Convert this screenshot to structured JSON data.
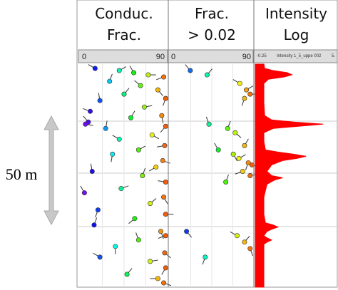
{
  "chart_data": {
    "type": "well-log",
    "scale_label": "50 m",
    "scale_length": 50,
    "depth_range": [
      0,
      104
    ],
    "tracks": [
      {
        "title": [
          "Conduc.",
          "Frac."
        ],
        "axis_labels": [
          "0",
          "90"
        ],
        "xlim": [
          0,
          90
        ],
        "tadpoles": {
          "depth": [
            2,
            3,
            4,
            5,
            6,
            8,
            10,
            12,
            14,
            16,
            17,
            20,
            22,
            24,
            25,
            27,
            28,
            29,
            30,
            33,
            35,
            38,
            40,
            42,
            45,
            48,
            50,
            52,
            55,
            58,
            60,
            62,
            65,
            68,
            70,
            72,
            75,
            78,
            80,
            82,
            85,
            88,
            90,
            92,
            95,
            98,
            100,
            102
          ],
          "dip": [
            15,
            40,
            55,
            70,
            86,
            30,
            62,
            80,
            45,
            88,
            20,
            66,
            10,
            84,
            52,
            8,
            5,
            88,
            26,
            74,
            40,
            87,
            60,
            33,
            85,
            78,
            12,
            64,
            88,
            42,
            4,
            86,
            72,
            18,
            88,
            56,
            14,
            83,
            88,
            60,
            36,
            87,
            20,
            72,
            88,
            48,
            80,
            86
          ],
          "azimuth": [
            300,
            60,
            330,
            90,
            250,
            20,
            310,
            140,
            40,
            200,
            350,
            80,
            290,
            170,
            30,
            320,
            100,
            220,
            10,
            120,
            300,
            260,
            60,
            190,
            110,
            240,
            350,
            20,
            280,
            70,
            330,
            150,
            50,
            200,
            90,
            230,
            20,
            160,
            250,
            340,
            180,
            130,
            300,
            80,
            210,
            40,
            270,
            110
          ]
        }
      },
      {
        "title": [
          "Frac.",
          "> 0.02"
        ],
        "axis_labels": [
          "0",
          "90"
        ],
        "xlim": [
          0,
          90
        ],
        "tadpoles": {
          "depth": [
            3,
            5,
            9,
            12,
            14,
            16,
            28,
            30,
            32,
            38,
            40,
            42,
            44,
            46,
            47,
            50,
            52,
            55,
            78,
            80,
            83,
            86,
            90
          ],
          "dip": [
            22,
            40,
            75,
            82,
            86,
            80,
            42,
            62,
            70,
            80,
            52,
            68,
            74,
            84,
            88,
            78,
            86,
            60,
            18,
            72,
            80,
            86,
            38
          ],
          "azimuth": [
            320,
            40,
            300,
            60,
            90,
            200,
            340,
            20,
            130,
            30,
            330,
            150,
            60,
            200,
            110,
            250,
            80,
            20,
            140,
            300,
            40,
            160,
            200
          ]
        }
      },
      {
        "title": [
          "Intensity",
          "Log"
        ],
        "axis_labels": [
          "-0.25",
          "Intensity 1_5_uppe 002",
          "5."
        ],
        "xlim": [
          -0.25,
          5
        ],
        "color": "#ff0000",
        "depth": [
          0,
          2,
          3,
          4,
          5,
          6,
          7,
          9,
          12,
          18,
          24,
          26,
          27,
          28,
          29,
          30,
          32,
          36,
          40,
          41,
          42,
          43,
          44,
          45,
          47,
          50,
          52,
          53,
          54,
          56,
          62,
          70,
          74,
          75,
          76,
          77,
          78,
          80,
          81,
          82,
          83,
          84,
          90,
          100,
          104
        ],
        "values": [
          0.3,
          0.35,
          0.9,
          1.8,
          2.1,
          1.6,
          0.6,
          0.3,
          0.3,
          0.3,
          0.35,
          0.8,
          2.2,
          4.1,
          2.5,
          0.9,
          0.3,
          0.3,
          0.4,
          1.2,
          2.2,
          3.0,
          2.4,
          1.5,
          0.8,
          0.5,
          0.8,
          1.5,
          1.0,
          0.5,
          0.3,
          0.3,
          0.4,
          0.9,
          1.2,
          0.8,
          0.5,
          0.3,
          0.5,
          0.8,
          0.5,
          0.3,
          0.3,
          0.3,
          0.3
        ]
      }
    ]
  }
}
